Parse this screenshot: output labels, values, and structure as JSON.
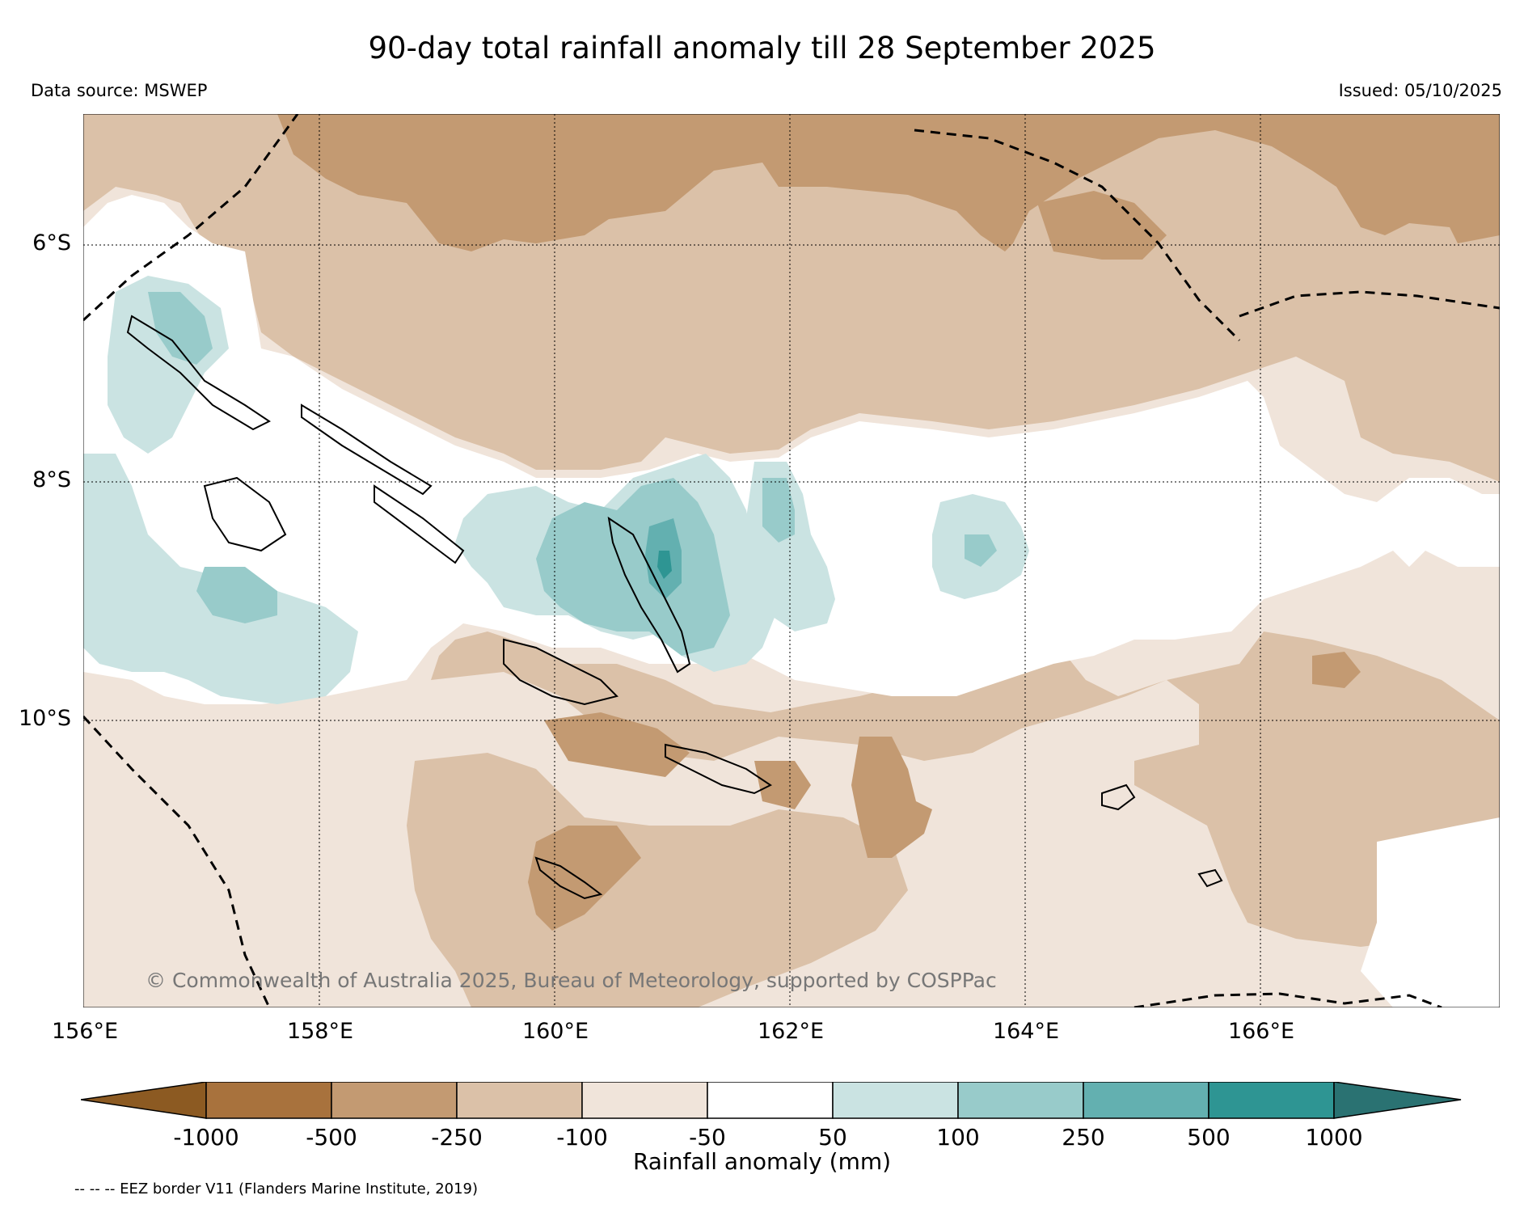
{
  "header": {
    "title": "90-day total rainfall anomaly till 28 September 2025",
    "data_source": "Data source: MSWEP",
    "issued": "Issued: 05/10/2025"
  },
  "map": {
    "lat_labels": [
      "6°S",
      "8°S",
      "10°S"
    ],
    "lon_labels": [
      "156°E",
      "158°E",
      "160°E",
      "162°E",
      "164°E",
      "166°E"
    ],
    "copyright": "© Commonwealth of Australia 2025, Bureau of Meteorology, supported by COSPPac"
  },
  "colorbar": {
    "ticks": [
      "-1000",
      "-500",
      "-250",
      "-100",
      "-50",
      "50",
      "100",
      "250",
      "500",
      "1000"
    ],
    "colors": [
      "#8c5a22",
      "#a8723d",
      "#c39a72",
      "#dbc1a8",
      "#f0e4da",
      "#ffffff",
      "#cae3e2",
      "#98cbca",
      "#63b0b0",
      "#2e9593",
      "#2a7272"
    ],
    "label": "Rainfall anomaly (mm)"
  },
  "footer": {
    "eez_note": "-- -- -- EEZ border V11 (Flanders Marine Institute, 2019)"
  }
}
